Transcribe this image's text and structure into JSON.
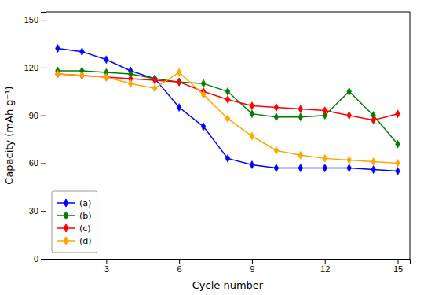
{
  "chart_data": {
    "type": "line",
    "x_label": "Cycle number",
    "y_label": "Capacity (mAh g⁻¹)",
    "x": [
      1,
      2,
      3,
      4,
      5,
      6,
      7,
      8,
      9,
      10,
      11,
      12,
      13,
      14,
      15
    ],
    "series": [
      {
        "name": "(a)",
        "color": "#0000FF",
        "marker": "diamond",
        "values": [
          132,
          130,
          125,
          118,
          113,
          95,
          83,
          63,
          59,
          57,
          57,
          57,
          57,
          56,
          55
        ]
      },
      {
        "name": "(b)",
        "color": "#008000",
        "marker": "diamond",
        "values": [
          118,
          118,
          117,
          116,
          113,
          111,
          110,
          105,
          91,
          89,
          89,
          90,
          105,
          90,
          72
        ]
      },
      {
        "name": "(c)",
        "color": "#FF0000",
        "marker": "diamond",
        "values": [
          116,
          115,
          114,
          113,
          112,
          111,
          105,
          100,
          96,
          95,
          94,
          93,
          90,
          87,
          91
        ]
      },
      {
        "name": "(d)",
        "color": "#FFA500",
        "marker": "diamond",
        "values": [
          116,
          115,
          114,
          110,
          107,
          117,
          103,
          88,
          77,
          68,
          65,
          63,
          62,
          61,
          60
        ]
      }
    ],
    "xlim": [
      0.5,
      15.5
    ],
    "ylim": [
      0,
      155
    ],
    "xticks": [
      3,
      6,
      9,
      12,
      15
    ],
    "yticks": [
      0,
      30,
      60,
      90,
      120,
      150
    ],
    "legend": "lower left",
    "grid": false
  }
}
